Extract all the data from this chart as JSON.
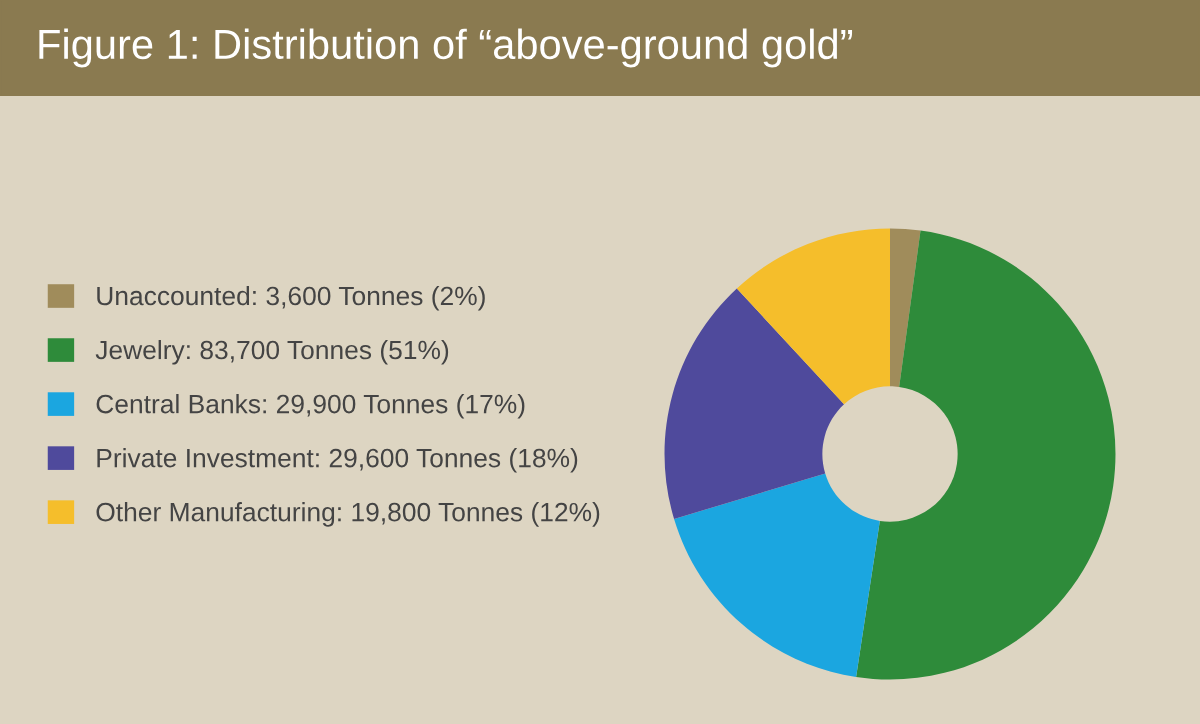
{
  "chart_data": {
    "type": "donut",
    "title": "Figure 1: Distribution of “above-ground gold”",
    "categories": [
      "Unaccounted: 3,600 Tonnes (2%)",
      "Jewelry: 83,700 Tonnes (51%)",
      "Central Banks: 29,900 Tonnes (17%)",
      "Private Investment: 29,600 Tonnes (18%)",
      "Other Manufacturing: 19,800 Tonnes (12%)"
    ],
    "values": [
      3600,
      83700,
      29900,
      29600,
      19800
    ],
    "colors": [
      "#a08c5b",
      "#2e8b3a",
      "#1ba6e0",
      "#4f4a9c",
      "#f5be2b"
    ],
    "legend": "left"
  }
}
